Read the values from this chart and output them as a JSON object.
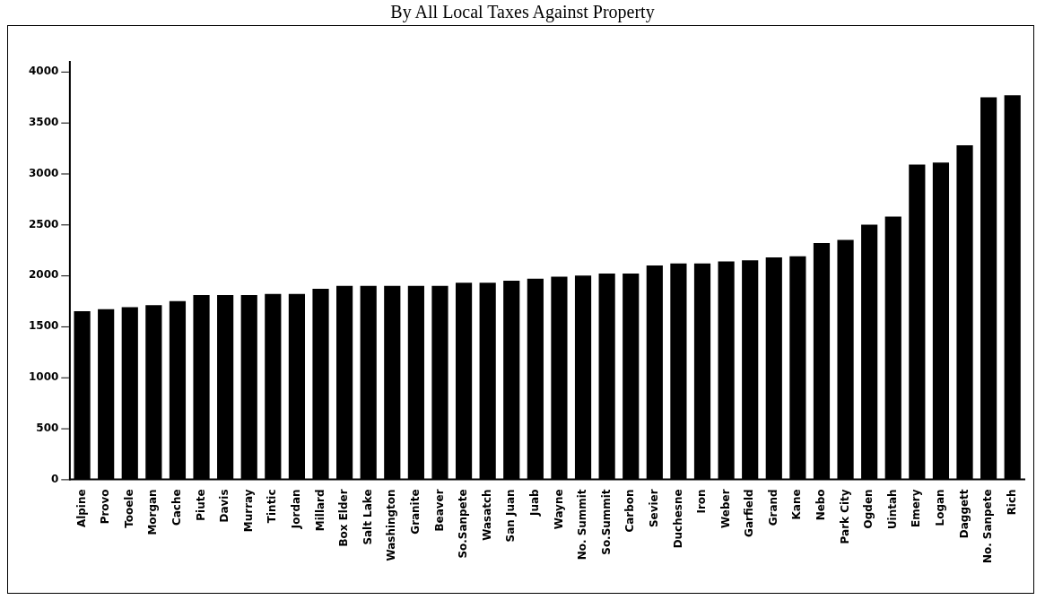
{
  "chart_data": {
    "type": "bar",
    "title": "By All Local Taxes Against Property",
    "categories": [
      "Alpine",
      "Provo",
      "Tooele",
      "Morgan",
      "Cache",
      "Piute",
      "Davis",
      "Murray",
      "Tintic",
      "Jordan",
      "Millard",
      "Box Elder",
      "Salt Lake",
      "Washington",
      "Granite",
      "Beaver",
      "So.Sanpete",
      "Wasatch",
      "San Juan",
      "Juab",
      "Wayne",
      "No. Summit",
      "So.Summit",
      "Carbon",
      "Sevier",
      "Duchesne",
      "Iron",
      "Weber",
      "Garfield",
      "Grand",
      "Kane",
      "Nebo",
      "Park City",
      "Ogden",
      "Uintah",
      "Emery",
      "Logan",
      "Daggett",
      "No. Sanpete",
      "Rich"
    ],
    "values": [
      1650,
      1670,
      1690,
      1710,
      1750,
      1810,
      1810,
      1810,
      1820,
      1820,
      1870,
      1900,
      1900,
      1900,
      1900,
      1900,
      1930,
      1930,
      1950,
      1970,
      1990,
      2000,
      2020,
      2020,
      2100,
      2120,
      2120,
      2140,
      2150,
      2180,
      2190,
      2320,
      2350,
      2500,
      2580,
      3090,
      3110,
      3280,
      3750,
      3770
    ],
    "color": "#000000",
    "ylim": [
      0,
      4100
    ],
    "yticks": [
      0,
      500,
      1000,
      1500,
      2000,
      2500,
      3000,
      3500,
      4000
    ],
    "grid": false
  }
}
